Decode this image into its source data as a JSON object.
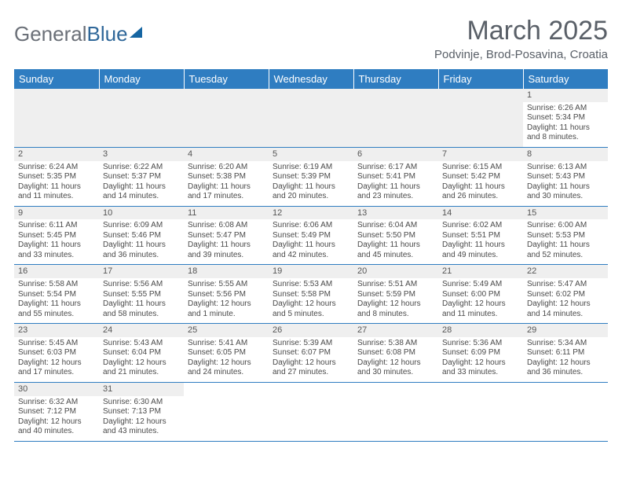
{
  "logo": {
    "part1": "General",
    "part2": "Blue"
  },
  "title": "March 2025",
  "subtitle": "Podvinje, Brod-Posavina, Croatia",
  "colors": {
    "header_bg": "#2f7dc1",
    "header_text": "#ffffff",
    "row_border": "#2f7dc1",
    "blank_bg": "#efefef",
    "text": "#4a4a4a"
  },
  "day_headers": [
    "Sunday",
    "Monday",
    "Tuesday",
    "Wednesday",
    "Thursday",
    "Friday",
    "Saturday"
  ],
  "weeks": [
    [
      null,
      null,
      null,
      null,
      null,
      null,
      {
        "n": "1",
        "sr": "Sunrise: 6:26 AM",
        "ss": "Sunset: 5:34 PM",
        "dl1": "Daylight: 11 hours",
        "dl2": "and 8 minutes."
      }
    ],
    [
      {
        "n": "2",
        "sr": "Sunrise: 6:24 AM",
        "ss": "Sunset: 5:35 PM",
        "dl1": "Daylight: 11 hours",
        "dl2": "and 11 minutes."
      },
      {
        "n": "3",
        "sr": "Sunrise: 6:22 AM",
        "ss": "Sunset: 5:37 PM",
        "dl1": "Daylight: 11 hours",
        "dl2": "and 14 minutes."
      },
      {
        "n": "4",
        "sr": "Sunrise: 6:20 AM",
        "ss": "Sunset: 5:38 PM",
        "dl1": "Daylight: 11 hours",
        "dl2": "and 17 minutes."
      },
      {
        "n": "5",
        "sr": "Sunrise: 6:19 AM",
        "ss": "Sunset: 5:39 PM",
        "dl1": "Daylight: 11 hours",
        "dl2": "and 20 minutes."
      },
      {
        "n": "6",
        "sr": "Sunrise: 6:17 AM",
        "ss": "Sunset: 5:41 PM",
        "dl1": "Daylight: 11 hours",
        "dl2": "and 23 minutes."
      },
      {
        "n": "7",
        "sr": "Sunrise: 6:15 AM",
        "ss": "Sunset: 5:42 PM",
        "dl1": "Daylight: 11 hours",
        "dl2": "and 26 minutes."
      },
      {
        "n": "8",
        "sr": "Sunrise: 6:13 AM",
        "ss": "Sunset: 5:43 PM",
        "dl1": "Daylight: 11 hours",
        "dl2": "and 30 minutes."
      }
    ],
    [
      {
        "n": "9",
        "sr": "Sunrise: 6:11 AM",
        "ss": "Sunset: 5:45 PM",
        "dl1": "Daylight: 11 hours",
        "dl2": "and 33 minutes."
      },
      {
        "n": "10",
        "sr": "Sunrise: 6:09 AM",
        "ss": "Sunset: 5:46 PM",
        "dl1": "Daylight: 11 hours",
        "dl2": "and 36 minutes."
      },
      {
        "n": "11",
        "sr": "Sunrise: 6:08 AM",
        "ss": "Sunset: 5:47 PM",
        "dl1": "Daylight: 11 hours",
        "dl2": "and 39 minutes."
      },
      {
        "n": "12",
        "sr": "Sunrise: 6:06 AM",
        "ss": "Sunset: 5:49 PM",
        "dl1": "Daylight: 11 hours",
        "dl2": "and 42 minutes."
      },
      {
        "n": "13",
        "sr": "Sunrise: 6:04 AM",
        "ss": "Sunset: 5:50 PM",
        "dl1": "Daylight: 11 hours",
        "dl2": "and 45 minutes."
      },
      {
        "n": "14",
        "sr": "Sunrise: 6:02 AM",
        "ss": "Sunset: 5:51 PM",
        "dl1": "Daylight: 11 hours",
        "dl2": "and 49 minutes."
      },
      {
        "n": "15",
        "sr": "Sunrise: 6:00 AM",
        "ss": "Sunset: 5:53 PM",
        "dl1": "Daylight: 11 hours",
        "dl2": "and 52 minutes."
      }
    ],
    [
      {
        "n": "16",
        "sr": "Sunrise: 5:58 AM",
        "ss": "Sunset: 5:54 PM",
        "dl1": "Daylight: 11 hours",
        "dl2": "and 55 minutes."
      },
      {
        "n": "17",
        "sr": "Sunrise: 5:56 AM",
        "ss": "Sunset: 5:55 PM",
        "dl1": "Daylight: 11 hours",
        "dl2": "and 58 minutes."
      },
      {
        "n": "18",
        "sr": "Sunrise: 5:55 AM",
        "ss": "Sunset: 5:56 PM",
        "dl1": "Daylight: 12 hours",
        "dl2": "and 1 minute."
      },
      {
        "n": "19",
        "sr": "Sunrise: 5:53 AM",
        "ss": "Sunset: 5:58 PM",
        "dl1": "Daylight: 12 hours",
        "dl2": "and 5 minutes."
      },
      {
        "n": "20",
        "sr": "Sunrise: 5:51 AM",
        "ss": "Sunset: 5:59 PM",
        "dl1": "Daylight: 12 hours",
        "dl2": "and 8 minutes."
      },
      {
        "n": "21",
        "sr": "Sunrise: 5:49 AM",
        "ss": "Sunset: 6:00 PM",
        "dl1": "Daylight: 12 hours",
        "dl2": "and 11 minutes."
      },
      {
        "n": "22",
        "sr": "Sunrise: 5:47 AM",
        "ss": "Sunset: 6:02 PM",
        "dl1": "Daylight: 12 hours",
        "dl2": "and 14 minutes."
      }
    ],
    [
      {
        "n": "23",
        "sr": "Sunrise: 5:45 AM",
        "ss": "Sunset: 6:03 PM",
        "dl1": "Daylight: 12 hours",
        "dl2": "and 17 minutes."
      },
      {
        "n": "24",
        "sr": "Sunrise: 5:43 AM",
        "ss": "Sunset: 6:04 PM",
        "dl1": "Daylight: 12 hours",
        "dl2": "and 21 minutes."
      },
      {
        "n": "25",
        "sr": "Sunrise: 5:41 AM",
        "ss": "Sunset: 6:05 PM",
        "dl1": "Daylight: 12 hours",
        "dl2": "and 24 minutes."
      },
      {
        "n": "26",
        "sr": "Sunrise: 5:39 AM",
        "ss": "Sunset: 6:07 PM",
        "dl1": "Daylight: 12 hours",
        "dl2": "and 27 minutes."
      },
      {
        "n": "27",
        "sr": "Sunrise: 5:38 AM",
        "ss": "Sunset: 6:08 PM",
        "dl1": "Daylight: 12 hours",
        "dl2": "and 30 minutes."
      },
      {
        "n": "28",
        "sr": "Sunrise: 5:36 AM",
        "ss": "Sunset: 6:09 PM",
        "dl1": "Daylight: 12 hours",
        "dl2": "and 33 minutes."
      },
      {
        "n": "29",
        "sr": "Sunrise: 5:34 AM",
        "ss": "Sunset: 6:11 PM",
        "dl1": "Daylight: 12 hours",
        "dl2": "and 36 minutes."
      }
    ],
    [
      {
        "n": "30",
        "sr": "Sunrise: 6:32 AM",
        "ss": "Sunset: 7:12 PM",
        "dl1": "Daylight: 12 hours",
        "dl2": "and 40 minutes."
      },
      {
        "n": "31",
        "sr": "Sunrise: 6:30 AM",
        "ss": "Sunset: 7:13 PM",
        "dl1": "Daylight: 12 hours",
        "dl2": "and 43 minutes."
      },
      null,
      null,
      null,
      null,
      null
    ]
  ]
}
